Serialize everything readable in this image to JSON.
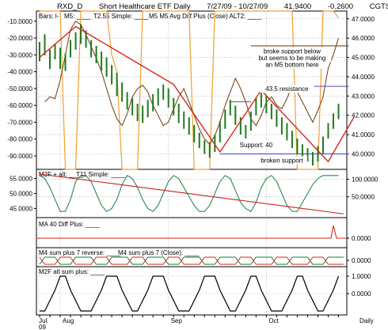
{
  "header": {
    "symbol": "RXD_D",
    "name": "Short Healthcare ETF Daily",
    "range": "7/27/09 - 10/27/09",
    "last": "41.9400",
    "change": "-0.2600",
    "credit": "CGTS ©"
  },
  "colors": {
    "bars_up": "#1f7a1f",
    "bars_down": "#1f7a1f",
    "m5": "#7a4a1e",
    "t255": "#d42a1a",
    "alt2": "#f0a030",
    "support": "#3344cc",
    "resistance": "#6644aa",
    "osc": "#2a8a4a",
    "t11": "#cc2222",
    "red": "#d42a1a",
    "green": "#1a7a3a"
  },
  "chart_data": [
    {
      "type": "line",
      "panel": "price",
      "legend": [
        "Bars: l-",
        "M5: ____",
        "T2.55 Simple: ____",
        "M5 M5 Avg Diff Plus (Close) ALT2: ____"
      ],
      "left_axis": [
        "-10.0000",
        "-20.0000",
        "-30.0000",
        "-40.0000",
        "-50.0000",
        "-60.0000",
        "-70.0000",
        "-80.0000",
        "-90.0000"
      ],
      "left_ylim": [
        -98,
        -4
      ],
      "right_axis": [
        "47.0000",
        "46.0000",
        "45.0000",
        "44.0000",
        "43.0000",
        "42.0000",
        "41.0000",
        "40.0000"
      ],
      "right_ylim": [
        39.2,
        47.4
      ],
      "bars": [
        [
          45.8,
          44.8
        ],
        [
          46.2,
          45.1
        ],
        [
          45.4,
          44.4
        ],
        [
          45.7,
          44.9
        ],
        [
          45.5,
          44.4
        ],
        [
          45.2,
          44.3
        ],
        [
          45.9,
          45.0
        ],
        [
          46.3,
          45.4
        ],
        [
          46.7,
          45.7
        ],
        [
          46.4,
          45.5
        ],
        [
          45.9,
          45.0
        ],
        [
          45.6,
          44.7
        ],
        [
          45.3,
          44.3
        ],
        [
          45.0,
          44.0
        ],
        [
          44.6,
          43.6
        ],
        [
          44.2,
          43.0
        ],
        [
          43.7,
          42.7
        ],
        [
          43.2,
          42.3
        ],
        [
          42.9,
          42.0
        ],
        [
          42.6,
          41.7
        ],
        [
          42.5,
          41.6
        ],
        [
          42.8,
          41.9
        ],
        [
          43.1,
          42.2
        ],
        [
          43.4,
          42.5
        ],
        [
          43.6,
          42.8
        ],
        [
          43.4,
          42.4
        ],
        [
          42.9,
          42.0
        ],
        [
          42.6,
          41.6
        ],
        [
          42.2,
          41.3
        ],
        [
          41.9,
          41.0
        ],
        [
          41.5,
          40.6
        ],
        [
          41.1,
          40.3
        ],
        [
          40.7,
          40.0
        ],
        [
          40.6,
          39.8
        ],
        [
          41.0,
          40.1
        ],
        [
          41.7,
          40.6
        ],
        [
          42.3,
          41.3
        ],
        [
          42.8,
          42.0
        ],
        [
          42.5,
          41.5
        ],
        [
          41.9,
          41.0
        ],
        [
          41.5,
          40.8
        ],
        [
          42.2,
          41.2
        ],
        [
          42.9,
          42.0
        ],
        [
          43.3,
          42.4
        ],
        [
          43.0,
          42.1
        ],
        [
          42.6,
          41.8
        ],
        [
          42.3,
          41.4
        ],
        [
          41.9,
          41.0
        ],
        [
          41.6,
          40.7
        ],
        [
          41.2,
          40.3
        ],
        [
          40.8,
          40.0
        ],
        [
          40.5,
          39.8
        ],
        [
          40.3,
          39.6
        ],
        [
          40.1,
          39.4
        ],
        [
          40.4,
          39.6
        ],
        [
          40.9,
          40.0
        ],
        [
          41.6,
          40.8
        ],
        [
          42.1,
          41.3
        ],
        [
          42.6,
          41.8
        ]
      ],
      "t255_line": [
        [
          0,
          45.0
        ],
        [
          7,
          46.6
        ],
        [
          26,
          43.6
        ],
        [
          35,
          40.1
        ],
        [
          43,
          43.3
        ],
        [
          56,
          39.6
        ],
        [
          61,
          41.9
        ]
      ],
      "m5_line": [
        -58,
        -55,
        -56,
        -45,
        -30,
        -15,
        -10,
        -12,
        -18,
        -25,
        -32,
        -40,
        -50,
        -60,
        -68,
        -72,
        -65,
        -55,
        -50,
        -48,
        -52,
        -60,
        -66,
        -72,
        -70,
        -62,
        -55,
        -50,
        -58,
        -66,
        -74,
        -80,
        -83,
        -78,
        -70,
        -60,
        -52,
        -44,
        -50,
        -58,
        -68,
        -72,
        -66,
        -58,
        -55,
        -60,
        -62,
        -56,
        -48,
        -52,
        -58,
        -64,
        -70,
        -63,
        -55,
        -38,
        -30,
        -20
      ],
      "alt2_line": [
        -4,
        -4,
        -4,
        -4,
        -4,
        -98,
        -98,
        -98,
        -4,
        -4,
        -4,
        -4,
        -4,
        -4,
        -30,
        -40,
        -98,
        -98,
        -98,
        -98,
        -4,
        -4,
        -4,
        -4,
        -4,
        -4,
        -4,
        -4,
        -4,
        -4,
        -98,
        -98,
        -98,
        -98,
        -4,
        -4,
        -4,
        -4,
        -4,
        -4,
        -4,
        -4,
        -4,
        -4,
        -4,
        -4,
        -4,
        -4,
        -4,
        -4,
        -98,
        -98,
        -98,
        -98,
        -98,
        -4,
        -4,
        -4,
        -8
      ],
      "annotations": [
        {
          "text": "broke support below",
          "x": 49,
          "y": 45.2
        },
        {
          "text": "but seems to be making",
          "x": 49,
          "y": 44.85
        },
        {
          "text": "an M5 bottom here",
          "x": 49,
          "y": 44.5
        },
        {
          "text": "43.5 resistance",
          "x": 48,
          "y": 43.25
        },
        {
          "text": "Support: 40",
          "x": 42,
          "y": 40.35
        },
        {
          "text": "broken support",
          "x": 47,
          "y": 39.55
        }
      ],
      "hlines": [
        {
          "y": 45.6,
          "x": [
            41,
            60
          ],
          "kind": "note"
        },
        {
          "y": 43.5,
          "x": [
            46,
            60
          ],
          "kind": "resistance"
        },
        {
          "y": 42.7,
          "x": [
            37,
            41
          ],
          "kind": "resistance"
        },
        {
          "y": 40.0,
          "x": [
            35,
            60
          ],
          "kind": "support"
        }
      ]
    },
    {
      "type": "line",
      "panel": "osc",
      "legend": [
        "M2F + alt: ____",
        "T11 Simple: ____"
      ],
      "right_axis": [
        "100.0000",
        "50.0000"
      ],
      "right_ylim": [
        0,
        110
      ],
      "left_axis": [
        "55.0000",
        "50.0000",
        "45.0000"
      ],
      "left_ylim": [
        43,
        57
      ],
      "osc_line": [
        56,
        55,
        52,
        48,
        44,
        44,
        48,
        54,
        56,
        56,
        54,
        50,
        46,
        44,
        45,
        48,
        53,
        56,
        55,
        52,
        48,
        45,
        44,
        46,
        50,
        54,
        56,
        55,
        52,
        49,
        46,
        44,
        44,
        46,
        50,
        54,
        56,
        55,
        51,
        47,
        45,
        44,
        47,
        52,
        55,
        56,
        54,
        50,
        46,
        44,
        44,
        47,
        50,
        53,
        55,
        56,
        56,
        56,
        56
      ],
      "t11_line": [
        [
          0,
          56.5
        ],
        [
          59,
          43.2
        ]
      ]
    },
    {
      "type": "line",
      "panel": "ma40",
      "legend": [
        "MA 40 Diff Plus: ____"
      ],
      "right_axis": [
        "0.0000"
      ],
      "spike_at": 57
    },
    {
      "type": "line",
      "panel": "m4",
      "legend": [
        "M4 sum plus 7 reverse: ____",
        "M4 sum plus 7 (Close): ____"
      ],
      "right_axis": [
        "0.0000"
      ]
    },
    {
      "type": "line",
      "panel": "m2f",
      "legend": [
        "M2F alt sum plus: ____"
      ],
      "right_axis": [
        "1.0000",
        "0.0000"
      ],
      "steps": [
        0,
        0,
        0.3,
        0.6,
        1,
        1,
        0.6,
        0.3,
        0,
        0,
        0,
        0.3,
        0.6,
        1,
        1,
        1,
        0.6,
        0.3,
        0,
        0,
        0.3,
        0.6,
        1,
        1,
        1,
        0.6,
        0.3,
        0,
        0,
        0,
        0.3,
        0.6,
        1,
        1,
        1,
        0.6,
        0.3,
        0,
        0,
        0.3,
        0.6,
        1,
        1,
        0.6,
        0.3,
        0,
        0,
        0,
        0.3,
        0.6,
        1,
        1,
        0.6,
        0.3,
        0,
        0,
        0.3,
        0.6,
        1
      ]
    }
  ],
  "xaxis": {
    "months": [
      {
        "label": "Jul",
        "sub": "09",
        "x": 0
      },
      {
        "label": "Aug",
        "x": 4
      },
      {
        "label": "Sep",
        "x": 25
      },
      {
        "label": "Oct",
        "x": 44
      }
    ],
    "period": "Daily"
  }
}
